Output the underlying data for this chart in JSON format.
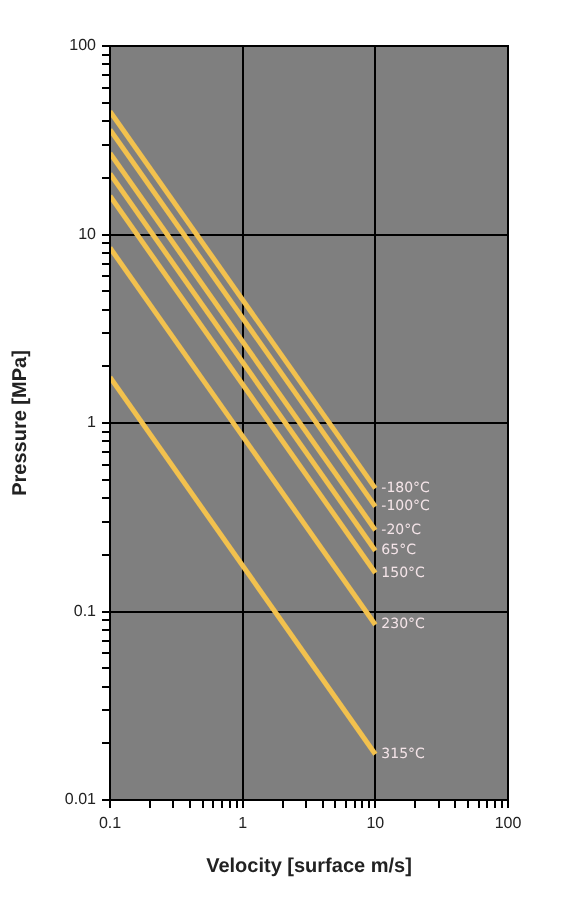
{
  "chart_data": {
    "type": "line",
    "xlabel": "Velocity [surface m/s]",
    "ylabel": "Pressure [MPa]",
    "log": "xy",
    "grid": true,
    "marker": "none",
    "line_style": "solid",
    "legend": false,
    "xlim": [
      0.1,
      100
    ],
    "ylim": [
      0.01,
      100
    ],
    "xticks": [
      0.1,
      {
        "value": 0.2,
        "label": null
      },
      {
        "value": 0.3,
        "label": null
      },
      {
        "value": 0.4,
        "label": null
      },
      {
        "value": 0.5,
        "label": null
      },
      {
        "value": 0.6,
        "label": null
      },
      {
        "value": 0.7,
        "label": null
      },
      {
        "value": 0.8,
        "label": null
      },
      {
        "value": 0.9,
        "label": null
      },
      1,
      {
        "value": 2,
        "label": null
      },
      {
        "value": 3,
        "label": null
      },
      {
        "value": 4,
        "label": null
      },
      {
        "value": 5,
        "label": null
      },
      {
        "value": 6,
        "label": null
      },
      {
        "value": 7,
        "label": null
      },
      {
        "value": 8,
        "label": null
      },
      {
        "value": 9,
        "label": null
      },
      10,
      {
        "value": 20,
        "label": null
      },
      {
        "value": 30,
        "label": null
      },
      {
        "value": 40,
        "label": null
      },
      {
        "value": 50,
        "label": null
      },
      {
        "value": 60,
        "label": null
      },
      {
        "value": 70,
        "label": null
      },
      {
        "value": 80,
        "label": null
      },
      {
        "value": 90,
        "label": null
      },
      100
    ],
    "yticks": [
      0.01,
      {
        "value": 0.02,
        "label": null
      },
      {
        "value": 0.03,
        "label": null
      },
      {
        "value": 0.04,
        "label": null
      },
      {
        "value": 0.05,
        "label": null
      },
      {
        "value": 0.06,
        "label": null
      },
      {
        "value": 0.07,
        "label": null
      },
      {
        "value": 0.08,
        "label": null
      },
      {
        "value": 0.09,
        "label": null
      },
      0.1,
      {
        "value": 0.2,
        "label": null
      },
      {
        "value": 0.3,
        "label": null
      },
      {
        "value": 0.4,
        "label": null
      },
      {
        "value": 0.5,
        "label": null
      },
      {
        "value": 0.6,
        "label": null
      },
      {
        "value": 0.7,
        "label": null
      },
      {
        "value": 0.8,
        "label": null
      },
      {
        "value": 0.9,
        "label": null
      },
      1,
      {
        "value": 2,
        "label": null
      },
      {
        "value": 3,
        "label": null
      },
      {
        "value": 4,
        "label": null
      },
      {
        "value": 5,
        "label": null
      },
      {
        "value": 6,
        "label": null
      },
      {
        "value": 7,
        "label": null
      },
      {
        "value": 8,
        "label": null
      },
      {
        "value": 9,
        "label": null
      },
      10,
      {
        "value": 20,
        "label": null
      },
      {
        "value": 30,
        "label": null
      },
      {
        "value": 40,
        "label": null
      },
      {
        "value": 50,
        "label": null
      },
      {
        "value": 60,
        "label": null
      },
      {
        "value": 70,
        "label": null
      },
      {
        "value": 80,
        "label": null
      },
      {
        "value": 90,
        "label": null
      },
      100
    ],
    "x": [
      0.1,
      10
    ],
    "series": [
      {
        "name": "-180°C",
        "color": "#f2c14e",
        "values": [
          45,
          0.45
        ]
      },
      {
        "name": "-100°C",
        "color": "#f2c14e",
        "values": [
          36,
          0.36
        ]
      },
      {
        "name": "-20°C",
        "color": "#f2c14e",
        "values": [
          27,
          0.27
        ]
      },
      {
        "name": "65°C",
        "color": "#f2c14e",
        "values": [
          21,
          0.21
        ]
      },
      {
        "name": "150°C",
        "color": "#f2c14e",
        "values": [
          16,
          0.16
        ]
      },
      {
        "name": "230°C",
        "color": "#f2c14e",
        "values": [
          8.5,
          0.085
        ]
      },
      {
        "name": "315°C",
        "color": "#f2c14e",
        "values": [
          1.75,
          0.0175
        ]
      }
    ]
  }
}
